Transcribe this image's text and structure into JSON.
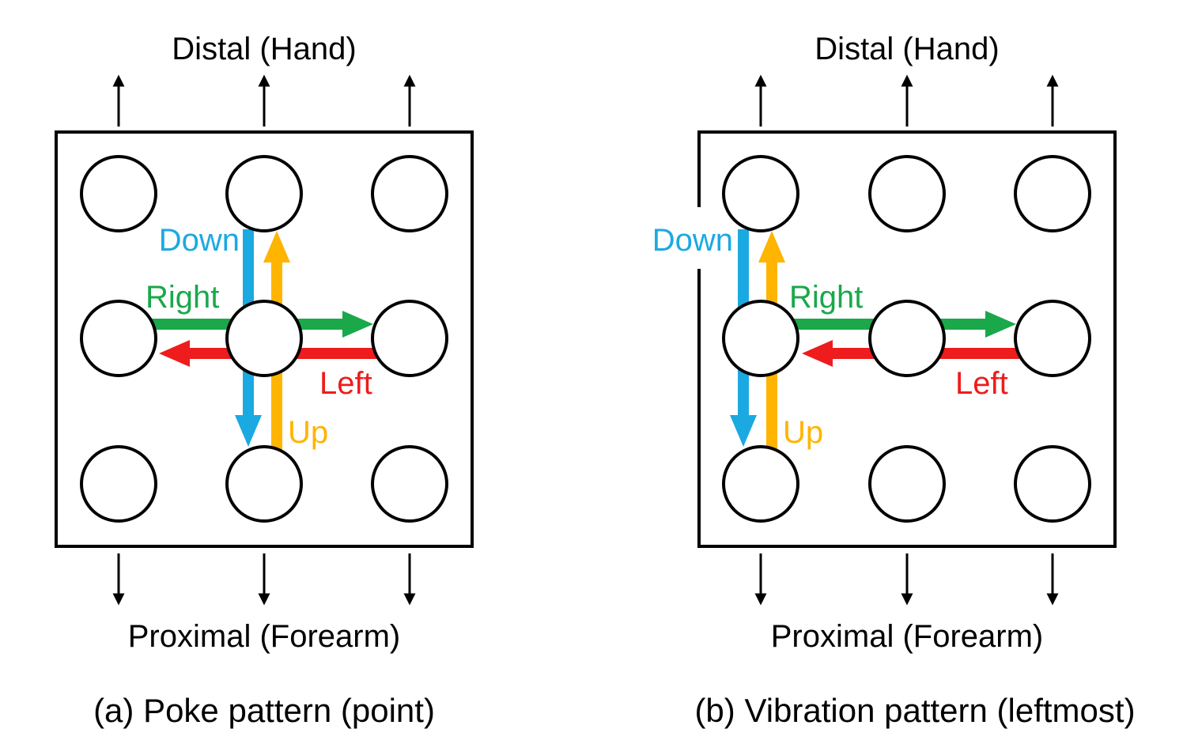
{
  "figure": {
    "panels": [
      {
        "id": "a",
        "top_label": "Distal (Hand)",
        "bottom_label": "Proximal (Forearm)",
        "caption": "(a) Poke pattern (point)",
        "directions": {
          "down": "Down",
          "up": "Up",
          "right": "Right",
          "left": "Left"
        }
      },
      {
        "id": "b",
        "top_label": "Distal (Hand)",
        "bottom_label": "Proximal (Forearm)",
        "caption": "(b) Vibration pattern (leftmost)",
        "directions": {
          "down": "Down",
          "up": "Up",
          "right": "Right",
          "left": "Left"
        }
      }
    ],
    "colors": {
      "down": "#1ba9e2",
      "up": "#ffb400",
      "right": "#1aa84b",
      "left": "#ee1c1c",
      "outline": "#000000"
    }
  }
}
